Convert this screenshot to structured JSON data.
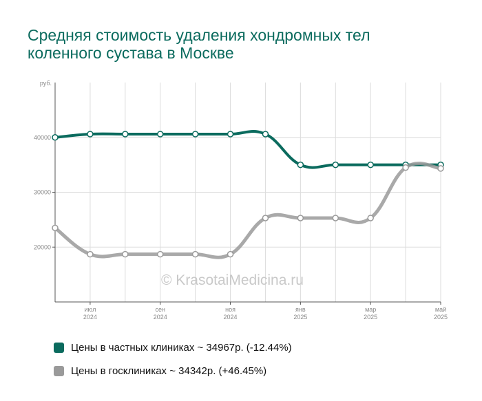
{
  "title_lines": [
    "Средняя стоимость удаления хондромных тел",
    "коленного сустава в Москве"
  ],
  "watermark": "© KrasotaiMedicina.ru",
  "legend": [
    {
      "label": "Цены в частных клиниках ~ 34967р. (-12.44%)",
      "color": "#0b6b5e"
    },
    {
      "label": "Цены в госклиниках ~ 34342р. (+46.45%)",
      "color": "#9a9a9a"
    }
  ],
  "chart_data": {
    "type": "line",
    "ylabel": "руб.",
    "ylim": [
      10000,
      50000
    ],
    "yticks": [
      20000,
      30000,
      40000
    ],
    "x": [
      "2024-06",
      "2024-07",
      "2024-08",
      "2024-09",
      "2024-10",
      "2024-11",
      "2024-12",
      "2025-01",
      "2025-02",
      "2025-03",
      "2025-04",
      "2025-05"
    ],
    "xtick_labels": [
      {
        "index": 1,
        "month": "июл",
        "year": "2024"
      },
      {
        "index": 3,
        "month": "сен",
        "year": "2024"
      },
      {
        "index": 5,
        "month": "ноя",
        "year": "2024"
      },
      {
        "index": 7,
        "month": "янв",
        "year": "2025"
      },
      {
        "index": 9,
        "month": "мар",
        "year": "2025"
      },
      {
        "index": 11,
        "month": "май",
        "year": "2025"
      }
    ],
    "grid": true,
    "series": [
      {
        "name": "Цены в частных клиниках",
        "color": "#0b6b5e",
        "values": [
          40000,
          40600,
          40600,
          40600,
          40600,
          40600,
          40600,
          35000,
          35000,
          35000,
          35000,
          35000
        ]
      },
      {
        "name": "Цены в госклиниках",
        "color": "#9a9a9a",
        "values": [
          23500,
          18700,
          18700,
          18700,
          18700,
          18700,
          25300,
          25300,
          25300,
          25300,
          34500,
          34342
        ]
      }
    ]
  }
}
